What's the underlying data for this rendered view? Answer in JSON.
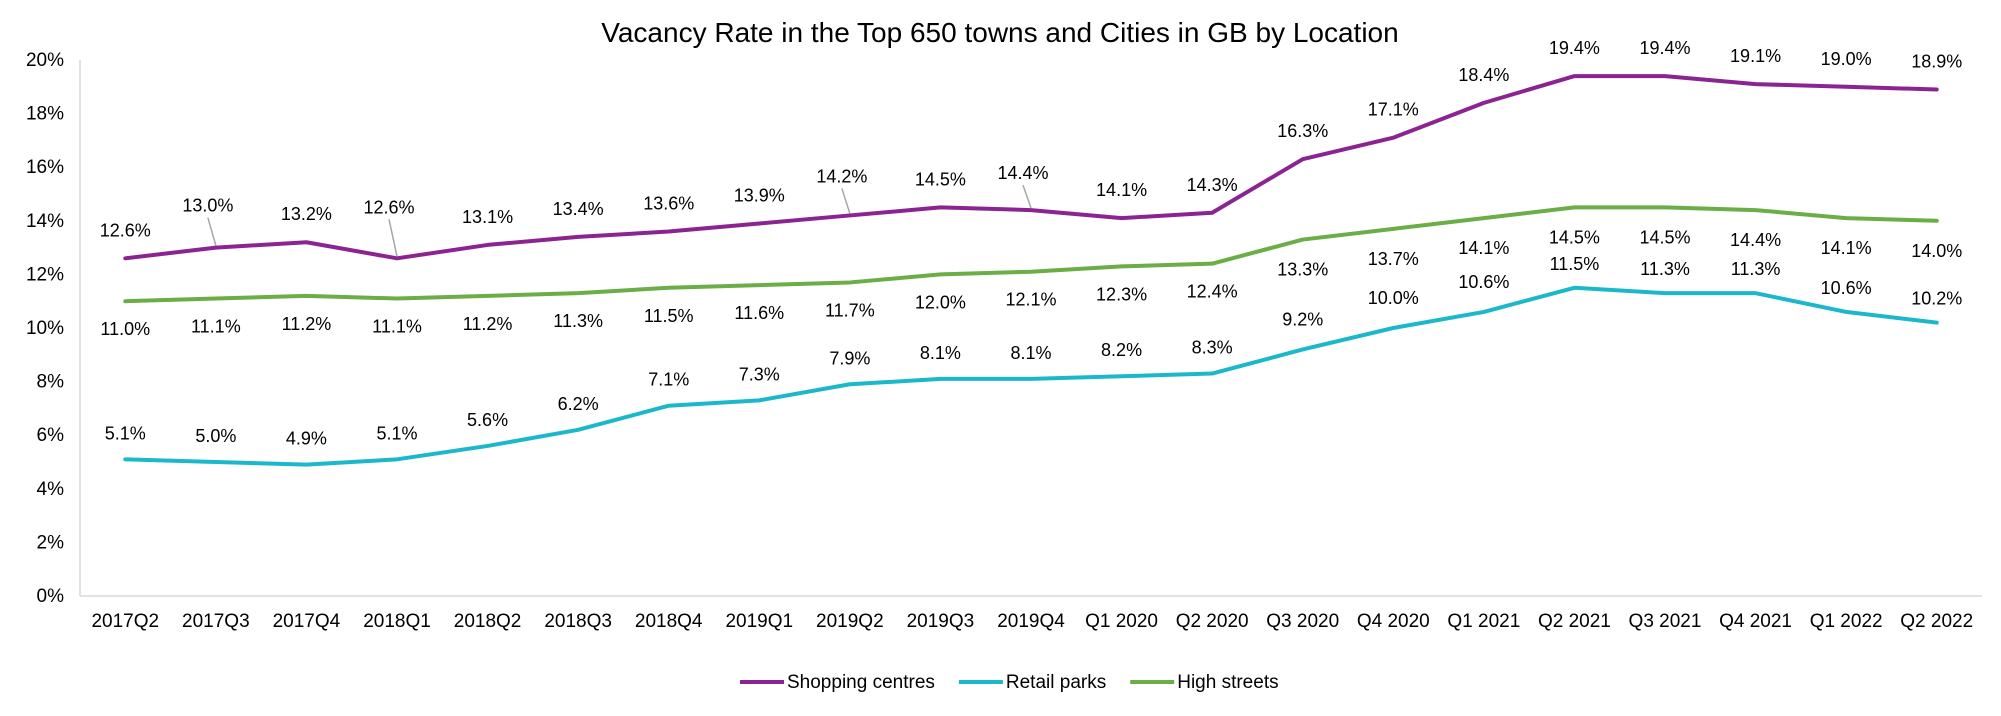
{
  "chart_data": {
    "type": "line",
    "title": "Vacancy Rate in the Top 650 towns and Cities in GB by Location",
    "xlabel": "",
    "ylabel": "",
    "ylim": [
      0,
      20
    ],
    "ytick_labels": [
      "0%",
      "2%",
      "4%",
      "6%",
      "8%",
      "10%",
      "12%",
      "14%",
      "16%",
      "18%",
      "20%"
    ],
    "categories": [
      "2017Q2",
      "2017Q3",
      "2017Q4",
      "2018Q1",
      "2018Q2",
      "2018Q3",
      "2018Q4",
      "2019Q1",
      "2019Q2",
      "2019Q3",
      "2019Q4",
      "Q1 2020",
      "Q2 2020",
      "Q3 2020",
      "Q4 2020",
      "Q1 2021",
      "Q2 2021",
      "Q3 2021",
      "Q4 2021",
      "Q1 2022",
      "Q2 2022"
    ],
    "grid": false,
    "legend_position": "bottom",
    "series": [
      {
        "name": "Shopping centres",
        "color": "#8B2393",
        "values": [
          12.6,
          13.0,
          13.2,
          12.6,
          13.1,
          13.4,
          13.6,
          13.9,
          14.2,
          14.5,
          14.4,
          14.1,
          14.3,
          16.3,
          17.1,
          18.4,
          19.4,
          19.4,
          19.1,
          19.0,
          18.9
        ],
        "labels": [
          "12.6%",
          "13.0%",
          "13.2%",
          "12.6%",
          "13.1%",
          "13.4%",
          "13.6%",
          "13.9%",
          "14.2%",
          "14.5%",
          "14.4%",
          "14.1%",
          "14.3%",
          "16.3%",
          "17.1%",
          "18.4%",
          "19.4%",
          "19.4%",
          "19.1%",
          "19.0%",
          "18.9%"
        ]
      },
      {
        "name": "Retail parks",
        "color": "#1BB8CC",
        "values": [
          5.1,
          5.0,
          4.9,
          5.1,
          5.6,
          6.2,
          7.1,
          7.3,
          7.9,
          8.1,
          8.1,
          8.2,
          8.3,
          9.2,
          10.0,
          10.6,
          11.5,
          11.3,
          11.3,
          10.6,
          10.2
        ],
        "labels": [
          "5.1%",
          "5.0%",
          "4.9%",
          "5.1%",
          "5.6%",
          "6.2%",
          "7.1%",
          "7.3%",
          "7.9%",
          "8.1%",
          "8.1%",
          "8.2%",
          "8.3%",
          "9.2%",
          "10.0%",
          "10.6%",
          "11.5%",
          "11.3%",
          "11.3%",
          "10.6%",
          "10.2%"
        ]
      },
      {
        "name": "High streets",
        "color": "#6AAE45",
        "values": [
          11.0,
          11.1,
          11.2,
          11.1,
          11.2,
          11.3,
          11.5,
          11.6,
          11.7,
          12.0,
          12.1,
          12.3,
          12.4,
          13.3,
          13.7,
          14.1,
          14.5,
          14.5,
          14.4,
          14.1,
          14.0
        ],
        "labels": [
          "11.0%",
          "11.1%",
          "11.2%",
          "11.1%",
          "11.2%",
          "11.3%",
          "11.5%",
          "11.6%",
          "11.7%",
          "12.0%",
          "12.1%",
          "12.3%",
          "12.4%",
          "13.3%",
          "13.7%",
          "14.1%",
          "14.5%",
          "14.5%",
          "14.4%",
          "14.1%",
          "14.0%"
        ]
      }
    ]
  }
}
